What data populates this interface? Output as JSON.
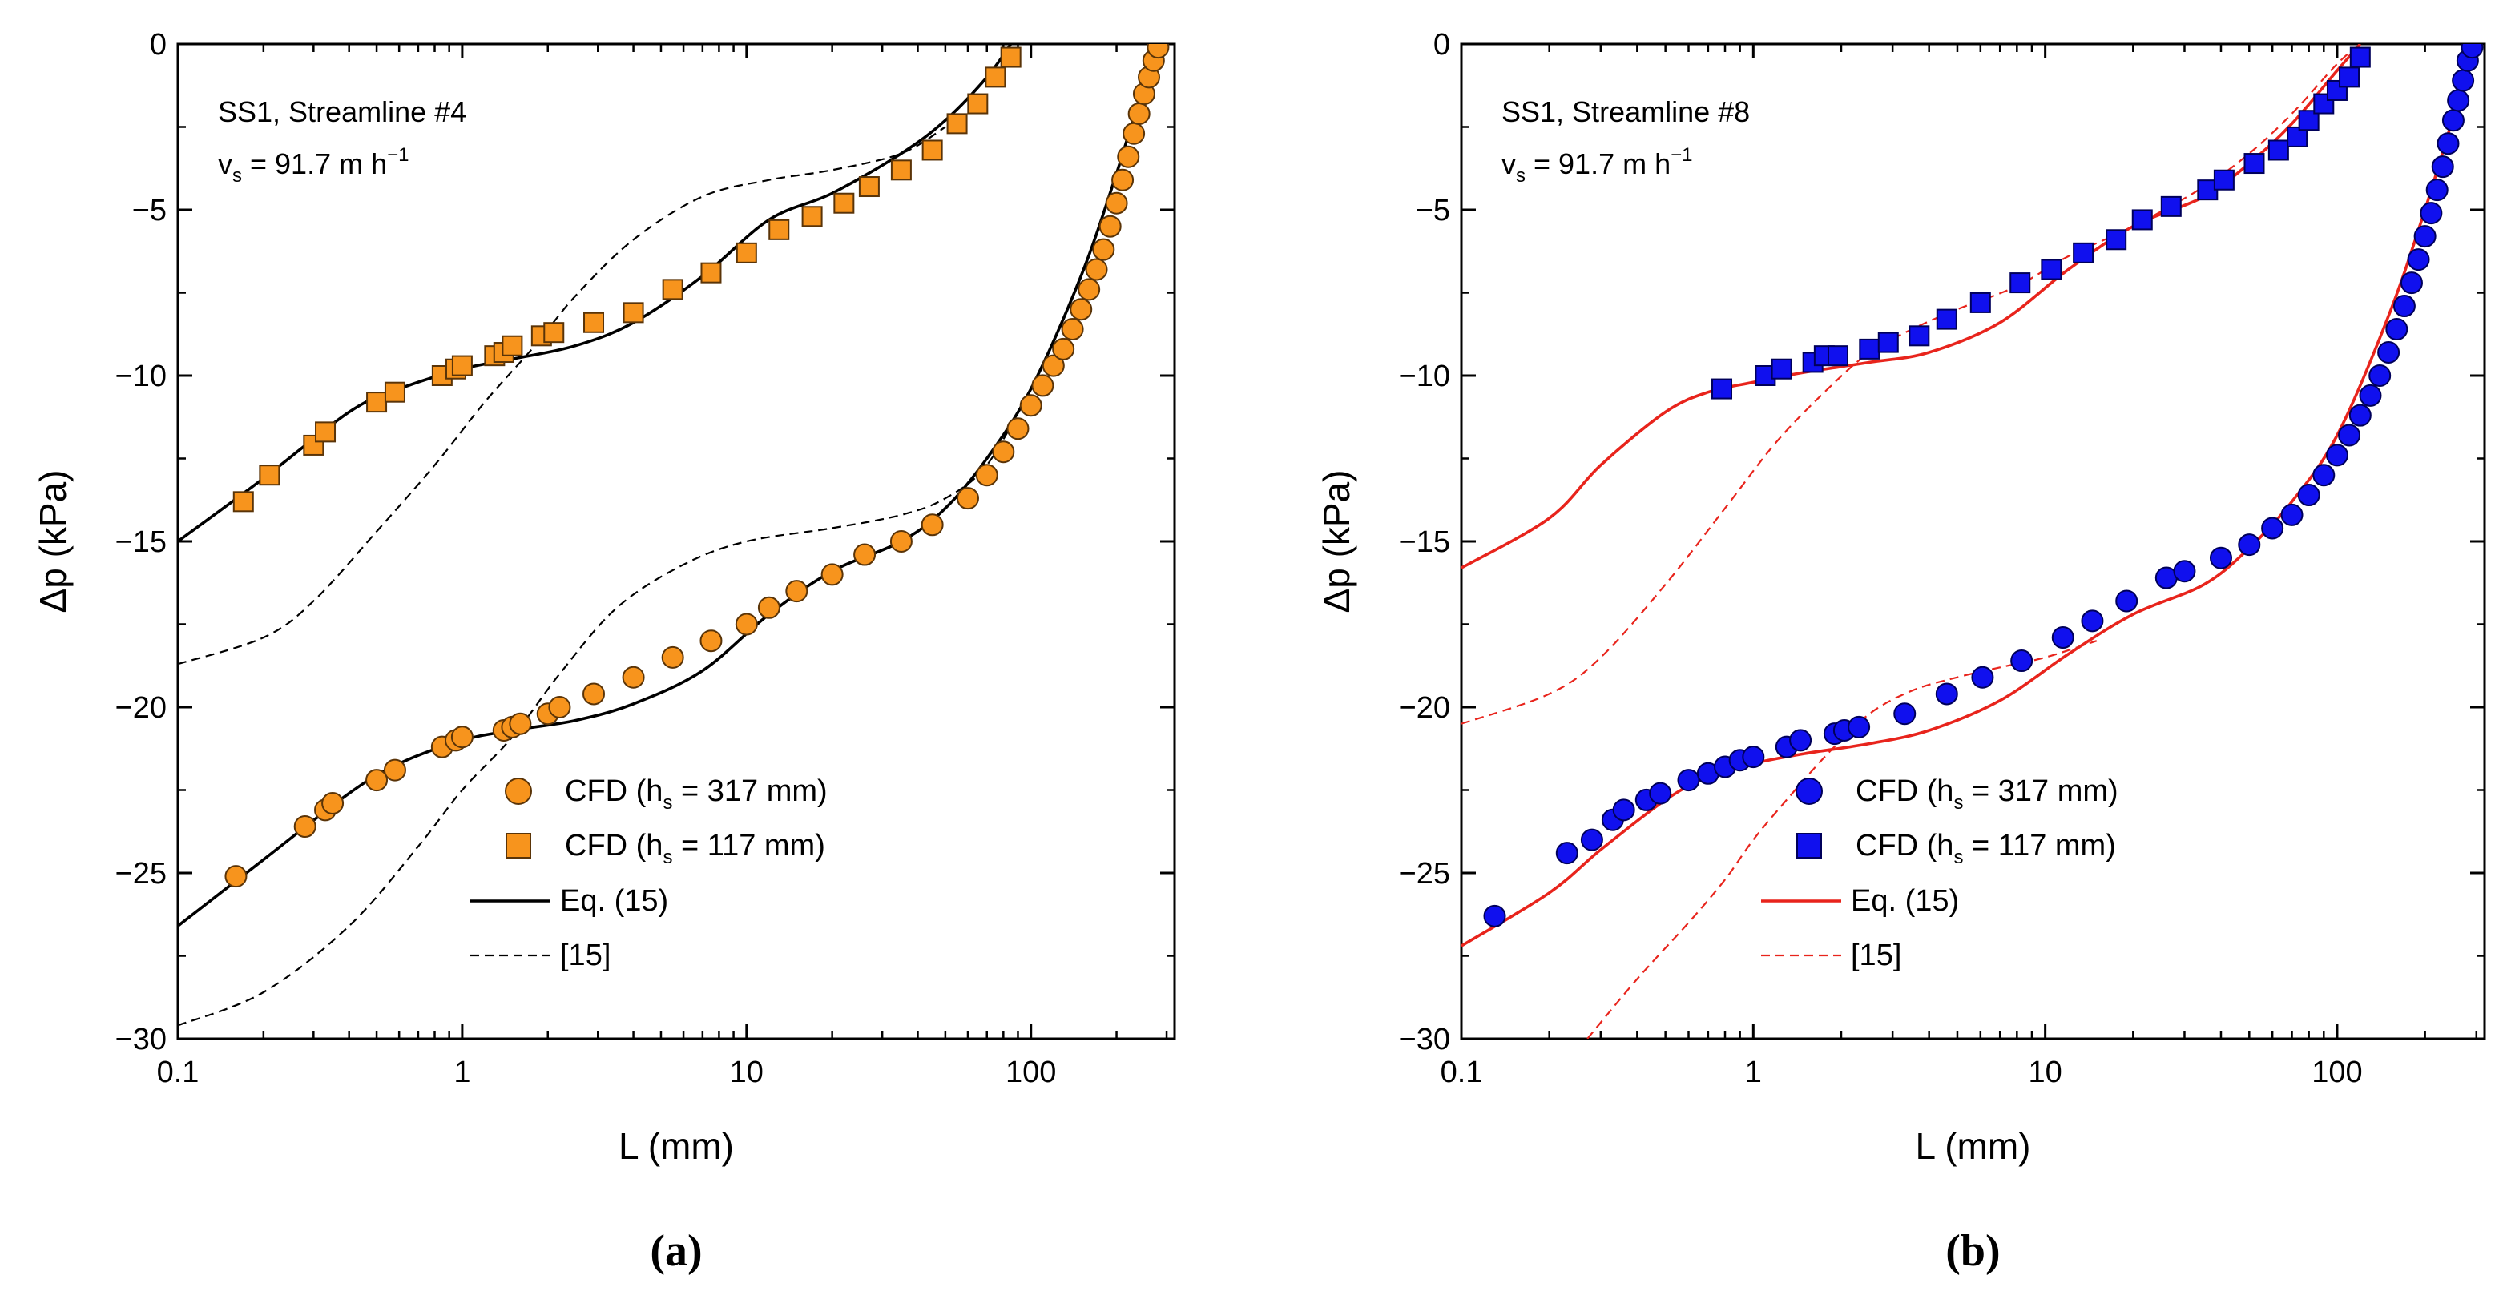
{
  "chart_data": [
    {
      "type": "line",
      "panel_label": "(a)",
      "annotation_line1": "SS1, Streamline #4",
      "annotation_velocity": {
        "main": "v",
        "sub": "s",
        "rest": " = 91.7 m h",
        "sup": "−1"
      },
      "xlabel": "L (mm)",
      "ylabel": "Δp (kPa)",
      "xscale": "log",
      "xlim": [
        0.1,
        320
      ],
      "ylim": [
        -30,
        0
      ],
      "xticks": [
        0.1,
        1,
        10,
        100
      ],
      "xtick_labels": [
        "0.1",
        "1",
        "10",
        "100"
      ],
      "yticks": [
        0,
        -5,
        -10,
        -15,
        -20,
        -25,
        -30
      ],
      "ytick_labels": [
        "0",
        "−5",
        "−10",
        "−15",
        "−20",
        "−25",
        "−30"
      ],
      "colors": {
        "marker": "#f7941d",
        "marker_edge": "#5a3408",
        "model": "#000000",
        "ref": "#000000"
      },
      "legend_position": "lower-right",
      "legend": [
        {
          "kind": "circle",
          "text": "CFD (h",
          "sub": "s",
          "rest": " = 317 mm)"
        },
        {
          "kind": "square",
          "text": "CFD (h",
          "sub": "s",
          "rest": " = 117 mm)"
        },
        {
          "kind": "solid",
          "text": "Eq. (15)"
        },
        {
          "kind": "dashed",
          "text": "[15]"
        }
      ],
      "series": [
        {
          "name": "CFD (hs = 317 mm)",
          "marker": "circle",
          "x": [
            0.16,
            0.28,
            0.33,
            0.35,
            0.5,
            0.58,
            0.85,
            0.95,
            1.0,
            1.4,
            1.5,
            1.6,
            2.0,
            2.2,
            2.9,
            4.0,
            5.5,
            7.5,
            10,
            12,
            15,
            20,
            26,
            35,
            45,
            60,
            70,
            80,
            90,
            100,
            110,
            120,
            130,
            140,
            150,
            160,
            170,
            180,
            190,
            200,
            210,
            220,
            230,
            240,
            250,
            260,
            270,
            280
          ],
          "y": [
            -25.1,
            -23.6,
            -23.1,
            -22.9,
            -22.2,
            -21.9,
            -21.2,
            -21.0,
            -20.9,
            -20.7,
            -20.6,
            -20.5,
            -20.2,
            -20.0,
            -19.6,
            -19.1,
            -18.5,
            -18.0,
            -17.5,
            -17.0,
            -16.5,
            -16.0,
            -15.4,
            -15.0,
            -14.5,
            -13.7,
            -13.0,
            -12.3,
            -11.6,
            -10.9,
            -10.3,
            -9.7,
            -9.2,
            -8.6,
            -8.0,
            -7.4,
            -6.8,
            -6.2,
            -5.5,
            -4.8,
            -4.1,
            -3.4,
            -2.7,
            -2.1,
            -1.5,
            -1.0,
            -0.5,
            -0.1
          ]
        },
        {
          "name": "CFD (hs = 117 mm)",
          "marker": "square",
          "x": [
            0.17,
            0.21,
            0.3,
            0.33,
            0.5,
            0.58,
            0.85,
            0.95,
            1.0,
            1.3,
            1.4,
            1.5,
            1.9,
            2.1,
            2.9,
            4.0,
            5.5,
            7.5,
            10,
            13,
            17,
            22,
            27,
            35,
            45,
            55,
            65,
            75,
            85
          ],
          "y": [
            -13.8,
            -13.0,
            -12.1,
            -11.7,
            -10.8,
            -10.5,
            -10.0,
            -9.8,
            -9.7,
            -9.4,
            -9.3,
            -9.1,
            -8.8,
            -8.7,
            -8.4,
            -8.1,
            -7.4,
            -6.9,
            -6.3,
            -5.6,
            -5.2,
            -4.8,
            -4.3,
            -3.8,
            -3.2,
            -2.4,
            -1.8,
            -1.0,
            -0.4
          ]
        },
        {
          "name": "Eq. (15) (hs = 317 mm)",
          "style": "solid",
          "x": [
            0.1,
            0.2,
            0.4,
            0.6,
            1.0,
            1.5,
            2.5,
            4,
            7,
            12,
            20,
            35,
            50,
            70,
            100,
            150,
            200,
            250,
            290
          ],
          "y": [
            -26.6,
            -24.6,
            -22.6,
            -21.7,
            -21.0,
            -20.7,
            -20.4,
            -19.9,
            -18.9,
            -17.2,
            -15.9,
            -15.0,
            -14.0,
            -12.5,
            -10.4,
            -7.0,
            -3.9,
            -1.2,
            0.0
          ]
        },
        {
          "name": "Eq. (15) (hs = 117 mm)",
          "style": "solid",
          "x": [
            0.1,
            0.2,
            0.4,
            0.6,
            1.0,
            1.5,
            2.5,
            4,
            7,
            12,
            20,
            35,
            50,
            70,
            85
          ],
          "y": [
            -15.0,
            -13.1,
            -11.1,
            -10.4,
            -9.8,
            -9.5,
            -9.1,
            -8.4,
            -7.0,
            -5.3,
            -4.5,
            -3.3,
            -2.3,
            -1.0,
            0.0
          ]
        },
        {
          "name": "[15] (hs = 317 mm)",
          "style": "dashed",
          "x": [
            0.1,
            0.2,
            0.4,
            0.7,
            1.0,
            1.5,
            2.2,
            3.5,
            6,
            10,
            20,
            35,
            50,
            70,
            100
          ],
          "y": [
            -29.6,
            -28.6,
            -26.6,
            -24.2,
            -22.5,
            -20.9,
            -19.0,
            -17.0,
            -15.7,
            -15.0,
            -14.6,
            -14.2,
            -13.7,
            -12.7,
            -10.4
          ]
        },
        {
          "name": "[15] (hs = 117 mm)",
          "style": "dashed",
          "x": [
            0.1,
            0.2,
            0.3,
            0.5,
            0.8,
            1.2,
            1.8,
            2.5,
            4,
            7,
            12,
            20,
            35,
            50
          ],
          "y": [
            -18.7,
            -17.9,
            -16.8,
            -14.7,
            -12.7,
            -10.8,
            -9.1,
            -7.6,
            -5.9,
            -4.6,
            -4.1,
            -3.8,
            -3.3,
            -2.5
          ]
        }
      ]
    },
    {
      "type": "line",
      "panel_label": "(b)",
      "annotation_line1": "SS1, Streamline #8",
      "annotation_velocity": {
        "main": "v",
        "sub": "s",
        "rest": " = 91.7 m h",
        "sup": "−1"
      },
      "xlabel": "L (mm)",
      "ylabel": "Δp (kPa)",
      "xscale": "log",
      "xlim": [
        0.1,
        320
      ],
      "ylim": [
        -30,
        0
      ],
      "xticks": [
        0.1,
        1,
        10,
        100
      ],
      "xtick_labels": [
        "0.1",
        "1",
        "10",
        "100"
      ],
      "yticks": [
        0,
        -5,
        -10,
        -15,
        -20,
        -25,
        -30
      ],
      "ytick_labels": [
        "0",
        "−5",
        "−10",
        "−15",
        "−20",
        "−25",
        "−30"
      ],
      "colors": {
        "marker": "#1010ee",
        "marker_edge": "#00005a",
        "model": "#e8241c",
        "ref": "#e8241c"
      },
      "legend_position": "lower-right",
      "legend": [
        {
          "kind": "circle",
          "text": "CFD (h",
          "sub": "s",
          "rest": " = 317 mm)"
        },
        {
          "kind": "square",
          "text": "CFD (h",
          "sub": "s",
          "rest": " = 117 mm)"
        },
        {
          "kind": "solid",
          "text": "Eq. (15)"
        },
        {
          "kind": "dashed",
          "text": "[15]"
        }
      ],
      "series": [
        {
          "name": "CFD (hs = 317 mm)",
          "marker": "circle",
          "x": [
            0.13,
            0.23,
            0.28,
            0.33,
            0.36,
            0.43,
            0.48,
            0.6,
            0.7,
            0.8,
            0.9,
            1.0,
            1.3,
            1.45,
            1.9,
            2.05,
            2.3,
            3.3,
            4.6,
            6.1,
            8.3,
            11.5,
            14.5,
            19,
            26,
            30,
            40,
            50,
            60,
            70,
            80,
            90,
            100,
            110,
            120,
            130,
            140,
            150,
            160,
            170,
            180,
            190,
            200,
            210,
            220,
            230,
            240,
            250,
            260,
            270,
            280,
            290
          ],
          "y": [
            -26.3,
            -24.4,
            -24.0,
            -23.4,
            -23.1,
            -22.8,
            -22.6,
            -22.2,
            -22.0,
            -21.8,
            -21.6,
            -21.5,
            -21.2,
            -21.0,
            -20.8,
            -20.7,
            -20.6,
            -20.2,
            -19.6,
            -19.1,
            -18.6,
            -17.9,
            -17.4,
            -16.8,
            -16.1,
            -15.9,
            -15.5,
            -15.1,
            -14.6,
            -14.2,
            -13.6,
            -13.0,
            -12.4,
            -11.8,
            -11.2,
            -10.6,
            -10.0,
            -9.3,
            -8.6,
            -7.9,
            -7.2,
            -6.5,
            -5.8,
            -5.1,
            -4.4,
            -3.7,
            -3.0,
            -2.3,
            -1.7,
            -1.1,
            -0.5,
            -0.1
          ]
        },
        {
          "name": "CFD (hs = 117 mm)",
          "marker": "square",
          "x": [
            0.78,
            1.1,
            1.25,
            1.6,
            1.75,
            1.95,
            2.5,
            2.9,
            3.7,
            4.6,
            6.0,
            8.2,
            10.5,
            13.5,
            17.5,
            21.5,
            27,
            36,
            41,
            52,
            63,
            73,
            80,
            90,
            100,
            110,
            120
          ],
          "y": [
            -10.4,
            -10.0,
            -9.8,
            -9.6,
            -9.4,
            -9.4,
            -9.2,
            -9.0,
            -8.8,
            -8.3,
            -7.8,
            -7.2,
            -6.8,
            -6.3,
            -5.9,
            -5.3,
            -4.9,
            -4.4,
            -4.1,
            -3.6,
            -3.2,
            -2.8,
            -2.3,
            -1.8,
            -1.4,
            -1.0,
            -0.4
          ]
        },
        {
          "name": "Eq. (15) (hs = 317 mm)",
          "style": "solid",
          "x": [
            0.1,
            0.2,
            0.3,
            0.5,
            0.7,
            1.0,
            1.5,
            2.5,
            4,
            7,
            12,
            20,
            35,
            50,
            70,
            100,
            150,
            200,
            250,
            300
          ],
          "y": [
            -27.2,
            -25.6,
            -24.3,
            -22.8,
            -22.1,
            -21.7,
            -21.4,
            -21.1,
            -20.7,
            -19.8,
            -18.4,
            -17.2,
            -16.3,
            -15.2,
            -13.8,
            -11.8,
            -8.2,
            -5.0,
            -2.2,
            0.0
          ]
        },
        {
          "name": "Eq. (15) (hs = 117 mm)",
          "style": "solid",
          "x": [
            0.1,
            0.2,
            0.3,
            0.5,
            0.7,
            1.0,
            1.5,
            2.5,
            4,
            7,
            12,
            20,
            35,
            50,
            70,
            100,
            120
          ],
          "y": [
            -15.8,
            -14.3,
            -12.7,
            -11.1,
            -10.5,
            -10.2,
            -9.9,
            -9.6,
            -9.3,
            -8.4,
            -6.8,
            -5.5,
            -4.6,
            -3.6,
            -2.4,
            -0.8,
            0.0
          ]
        },
        {
          "name": "[15] (hs = 317 mm)",
          "style": "dashed",
          "x": [
            0.27,
            0.4,
            0.6,
            0.8,
            1.0,
            1.3,
            1.8,
            2.5,
            3.5,
            5,
            7,
            10,
            15
          ],
          "y": [
            -30.0,
            -28.2,
            -26.5,
            -25.2,
            -24.0,
            -22.8,
            -21.4,
            -20.2,
            -19.5,
            -19.1,
            -18.8,
            -18.5,
            -18.0
          ]
        },
        {
          "name": "[15] (hs = 117 mm)",
          "style": "dashed",
          "x": [
            0.1,
            0.2,
            0.3,
            0.5,
            0.8,
            1.2,
            1.8,
            2.5,
            3.5,
            5,
            8,
            12,
            20,
            35,
            50,
            70,
            100,
            120
          ],
          "y": [
            -20.5,
            -19.6,
            -18.5,
            -16.3,
            -14.0,
            -12.0,
            -10.4,
            -9.3,
            -8.6,
            -8.0,
            -7.3,
            -6.4,
            -5.5,
            -4.3,
            -3.3,
            -2.1,
            -0.6,
            0.0
          ]
        }
      ]
    }
  ]
}
